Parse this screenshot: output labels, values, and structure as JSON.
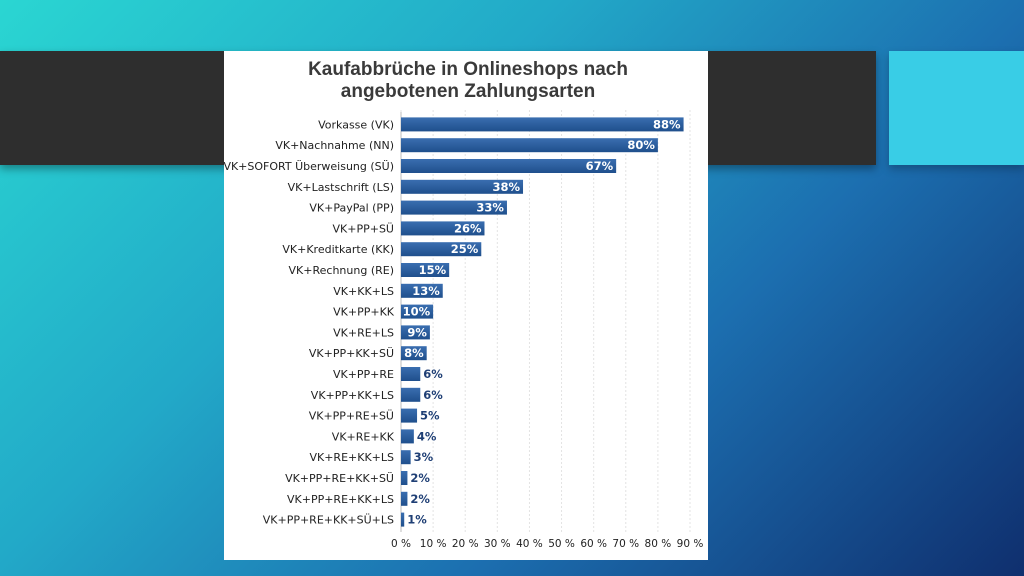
{
  "colors": {
    "bar": "#1f4f8c",
    "bar_top": "#3a6eb0",
    "band": "#2e2e2e",
    "accent": "#39cde6"
  },
  "chart_data": {
    "type": "bar",
    "orientation": "horizontal",
    "title_lines": [
      "Kaufabbrüche in Onlineshops nach",
      "angebotenen Zahlungsarten"
    ],
    "categories": [
      "Vorkasse (VK)",
      "VK+Nachnahme (NN)",
      "VK+SOFORT Überweisung (SÜ)",
      "VK+Lastschrift (LS)",
      "VK+PayPal (PP)",
      "VK+PP+SÜ",
      "VK+Kreditkarte (KK)",
      "VK+Rechnung (RE)",
      "VK+KK+LS",
      "VK+PP+KK",
      "VK+RE+LS",
      "VK+PP+KK+SÜ",
      "VK+PP+RE",
      "VK+PP+KK+LS",
      "VK+PP+RE+SÜ",
      "VK+RE+KK",
      "VK+RE+KK+LS",
      "VK+PP+RE+KK+SÜ",
      "VK+PP+RE+KK+LS",
      "VK+PP+RE+KK+SÜ+LS"
    ],
    "values": [
      88,
      80,
      67,
      38,
      33,
      26,
      25,
      15,
      13,
      10,
      9,
      8,
      6,
      6,
      5,
      4,
      3,
      2,
      2,
      1
    ],
    "value_labels": [
      "88%",
      "80%",
      "67%",
      "38%",
      "33%",
      "26%",
      "25%",
      "15%",
      "13%",
      "10%",
      "9%",
      "8%",
      "6%",
      "6%",
      "5%",
      "4%",
      "3%",
      "2%",
      "2%",
      "1%"
    ],
    "xlim": [
      0,
      90
    ],
    "xticks": [
      0,
      10,
      20,
      30,
      40,
      50,
      60,
      70,
      80,
      90
    ],
    "xtick_labels": [
      "0 %",
      "10 %",
      "20 %",
      "30 %",
      "40 %",
      "50 %",
      "60 %",
      "70 %",
      "80 %",
      "90 %"
    ],
    "grid": true,
    "legend": "none"
  }
}
